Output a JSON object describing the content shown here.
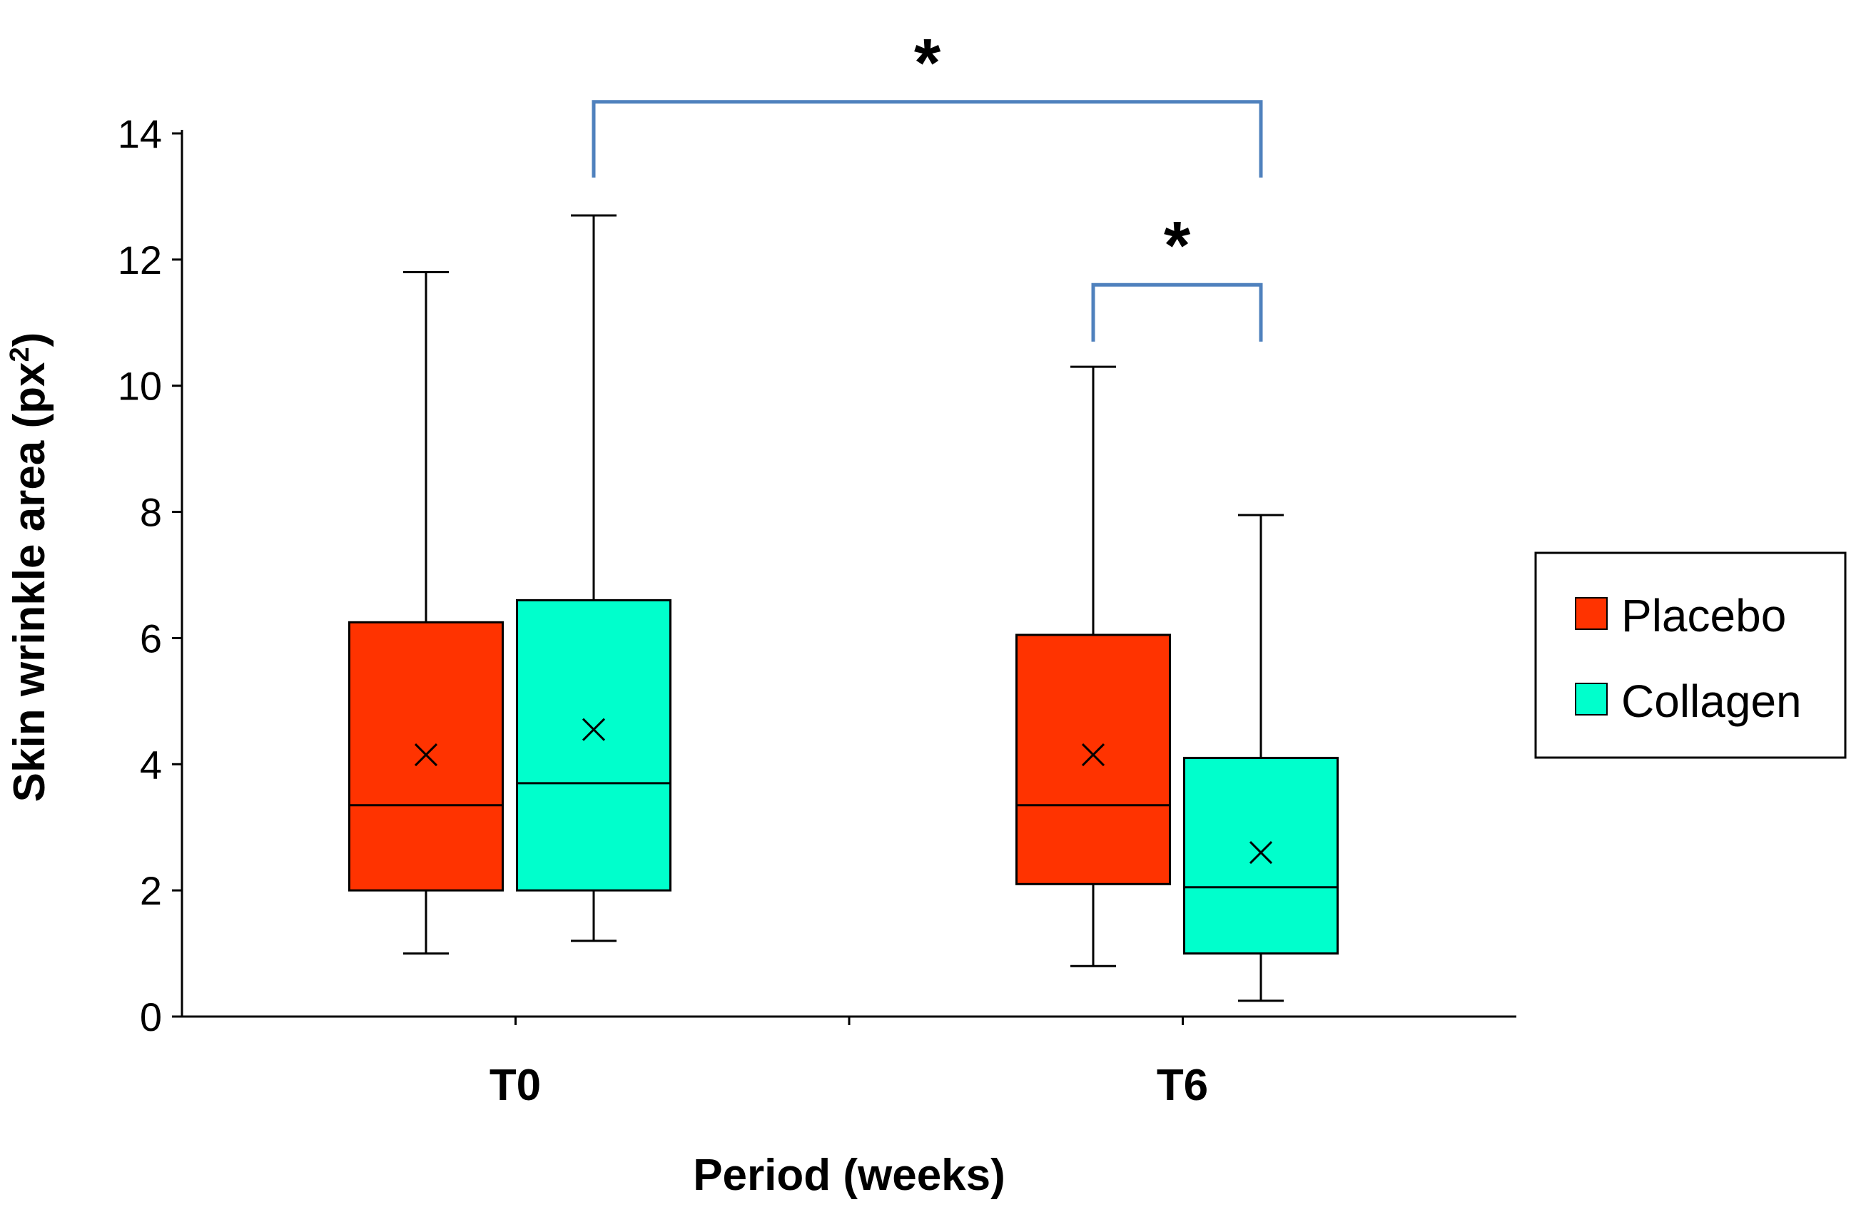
{
  "chart_data": {
    "type": "boxplot",
    "title": "",
    "xlabel": "Period (weeks)",
    "ylabel_main": "Skin wrinkle area (px",
    "ylabel_sup": "2",
    "ylabel_close": ")",
    "ylim": [
      0,
      14
    ],
    "yticks": [
      "0",
      "2",
      "4",
      "6",
      "8",
      "10",
      "12",
      "14"
    ],
    "categories": [
      "T0",
      "T6"
    ],
    "legend_position": "right",
    "series": [
      {
        "name": "Placebo",
        "color": "#ff3300",
        "boxes": [
          {
            "category": "T0",
            "min": 1.0,
            "q1": 2.0,
            "median": 3.35,
            "q3": 6.25,
            "max": 11.8,
            "mean": 4.15
          },
          {
            "category": "T6",
            "min": 0.8,
            "q1": 2.1,
            "median": 3.35,
            "q3": 6.05,
            "max": 10.3,
            "mean": 4.15
          }
        ]
      },
      {
        "name": "Collagen",
        "color": "#00ffcc",
        "boxes": [
          {
            "category": "T0",
            "min": 1.2,
            "q1": 2.0,
            "median": 3.7,
            "q3": 6.6,
            "max": 12.7,
            "mean": 4.55
          },
          {
            "category": "T6",
            "min": 0.25,
            "q1": 1.0,
            "median": 2.05,
            "q3": 4.1,
            "max": 7.95,
            "mean": 2.6
          }
        ]
      }
    ],
    "significance": [
      {
        "label": "*",
        "from": {
          "series": 1,
          "category": 0
        },
        "to": {
          "series": 1,
          "category": 1
        },
        "level": 14.5,
        "drop_to": 13.3
      },
      {
        "label": "*",
        "from": {
          "series": 0,
          "category": 1
        },
        "to": {
          "series": 1,
          "category": 1
        },
        "level": 11.6,
        "drop_to": 10.7
      }
    ],
    "bracket_color": "#4f81bd"
  }
}
